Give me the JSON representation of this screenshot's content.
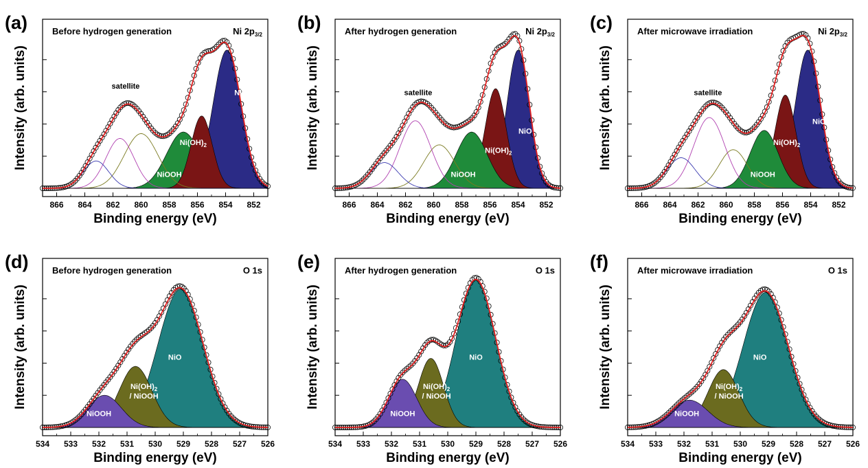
{
  "chart_data": [
    {
      "letter": "(a)",
      "type": "area",
      "title": "Before hydrogen generation",
      "region": "Ni 2p",
      "region_sub": "3/2",
      "xlabel": "Binding energy (eV)",
      "ylabel": "Intensity (arb. units)",
      "xlim": [
        867,
        851
      ],
      "xticks": [
        866,
        864,
        862,
        860,
        858,
        856,
        854,
        852
      ],
      "ylim": [
        0,
        1.0
      ],
      "satellite_label": "satellite",
      "satellite_at": [
        861.1,
        0.62
      ],
      "peaks": [
        {
          "name": "NiO",
          "center": 853.9,
          "height": 0.86,
          "sigma": 1.0,
          "fill": true,
          "color": "#2b2b86",
          "label_at": [
            852.9,
            0.58
          ],
          "label_color": "#ffffff"
        },
        {
          "name": "Ni(OH)",
          "name_sub": "2",
          "center": 855.7,
          "height": 0.45,
          "sigma": 0.75,
          "fill": true,
          "color": "#7a1515",
          "label_at": [
            856.3,
            0.27
          ],
          "label_color": "#ffffff"
        },
        {
          "name": "NiOOH",
          "center": 857.0,
          "height": 0.35,
          "sigma": 1.2,
          "fill": true,
          "color": "#1f8b3a",
          "label_at": [
            858.0,
            0.07
          ],
          "label_color": "#ffffff"
        },
        {
          "name": "",
          "center": 860.0,
          "height": 0.34,
          "sigma": 1.2,
          "fill": false,
          "color": "#7a7a20"
        },
        {
          "name": "",
          "center": 861.5,
          "height": 0.31,
          "sigma": 1.0,
          "fill": false,
          "color": "#b040b0"
        },
        {
          "name": "",
          "center": 863.2,
          "height": 0.17,
          "sigma": 0.9,
          "fill": false,
          "color": "#3a3ab0"
        }
      ]
    },
    {
      "letter": "(b)",
      "type": "area",
      "title": "After hydrogen generation",
      "region": "Ni 2p",
      "region_sub": "3/2",
      "xlabel": "Binding energy (eV)",
      "ylabel": "Intensity (arb. units)",
      "xlim": [
        867,
        851
      ],
      "xticks": [
        866,
        864,
        862,
        860,
        858,
        856,
        854,
        852
      ],
      "ylim": [
        0,
        1.0
      ],
      "satellite_label": "satellite",
      "satellite_at": [
        861.1,
        0.58
      ],
      "peaks": [
        {
          "name": "NiO",
          "center": 854.0,
          "height": 0.86,
          "sigma": 0.8,
          "fill": true,
          "color": "#2b2b86",
          "label_at": [
            853.5,
            0.34
          ],
          "label_color": "#ffffff"
        },
        {
          "name": "Ni(OH)",
          "name_sub": "2",
          "center": 855.6,
          "height": 0.62,
          "sigma": 0.75,
          "fill": true,
          "color": "#7a1515",
          "label_at": [
            855.4,
            0.22
          ],
          "label_color": "#ffffff"
        },
        {
          "name": "NiOOH",
          "center": 857.3,
          "height": 0.35,
          "sigma": 1.1,
          "fill": true,
          "color": "#1f8b3a",
          "label_at": [
            857.9,
            0.07
          ],
          "label_color": "#ffffff"
        },
        {
          "name": "",
          "center": 859.6,
          "height": 0.27,
          "sigma": 1.1,
          "fill": false,
          "color": "#7a7a20"
        },
        {
          "name": "",
          "center": 861.3,
          "height": 0.42,
          "sigma": 1.1,
          "fill": false,
          "color": "#b040b0"
        },
        {
          "name": "",
          "center": 863.5,
          "height": 0.16,
          "sigma": 1.0,
          "fill": false,
          "color": "#3a3ab0"
        }
      ]
    },
    {
      "letter": "(c)",
      "type": "area",
      "title": "After microwave irradiation",
      "region": "Ni 2p",
      "region_sub": "3/2",
      "xlabel": "Binding energy (eV)",
      "ylabel": "Intensity (arb. units)",
      "xlim": [
        867,
        851
      ],
      "xticks": [
        866,
        864,
        862,
        860,
        858,
        856,
        854,
        852
      ],
      "ylim": [
        0,
        1.0
      ],
      "satellite_label": "satellite",
      "satellite_at": [
        861.3,
        0.58
      ],
      "peaks": [
        {
          "name": "NiO",
          "center": 854.2,
          "height": 0.86,
          "sigma": 0.9,
          "fill": true,
          "color": "#2b2b86",
          "label_at": [
            853.4,
            0.4
          ],
          "label_color": "#ffffff"
        },
        {
          "name": "Ni(OH)",
          "name_sub": "2",
          "center": 855.8,
          "height": 0.58,
          "sigma": 0.75,
          "fill": true,
          "color": "#7a1515",
          "label_at": [
            855.7,
            0.27
          ],
          "label_color": "#ffffff"
        },
        {
          "name": "NiOOH",
          "center": 857.3,
          "height": 0.36,
          "sigma": 1.0,
          "fill": true,
          "color": "#1f8b3a",
          "label_at": [
            857.4,
            0.07
          ],
          "label_color": "#ffffff"
        },
        {
          "name": "",
          "center": 859.5,
          "height": 0.24,
          "sigma": 1.0,
          "fill": false,
          "color": "#7a7a20"
        },
        {
          "name": "",
          "center": 861.2,
          "height": 0.44,
          "sigma": 1.1,
          "fill": false,
          "color": "#b040b0"
        },
        {
          "name": "",
          "center": 863.2,
          "height": 0.19,
          "sigma": 1.0,
          "fill": false,
          "color": "#3a3ab0"
        }
      ]
    },
    {
      "letter": "(d)",
      "type": "area",
      "title": "Before hydrogen generation",
      "region": "O 1s",
      "region_sub": "",
      "xlabel": "Binding energy (eV)",
      "ylabel": "Intensity (arb. units)",
      "xlim": [
        534,
        526
      ],
      "xticks": [
        534,
        533,
        532,
        531,
        530,
        529,
        528,
        527,
        526
      ],
      "ylim": [
        0,
        1.0
      ],
      "peaks": [
        {
          "name": "NiO",
          "center": 529.1,
          "height": 0.86,
          "sigma": 0.8,
          "fill": true,
          "color": "#1f7f7f",
          "label_at": [
            529.3,
            0.42
          ],
          "label_color": "#ffffff"
        },
        {
          "name": "Ni(OH)",
          "name_sub": "2",
          "name2": "/ NiOOH",
          "center": 530.7,
          "height": 0.38,
          "sigma": 0.58,
          "fill": true,
          "color": "#6b6b1f",
          "label_at": [
            530.4,
            0.24
          ],
          "label_color": "#ffffff"
        },
        {
          "name": "NiOOH",
          "center": 531.8,
          "height": 0.2,
          "sigma": 0.6,
          "fill": true,
          "color": "#6a4db0",
          "label_at": [
            532.0,
            0.07
          ],
          "label_color": "#ffffff"
        }
      ]
    },
    {
      "letter": "(e)",
      "type": "area",
      "title": "After hydrogen generation",
      "region": "O 1s",
      "region_sub": "",
      "xlabel": "Binding energy (eV)",
      "ylabel": "Intensity (arb. units)",
      "xlim": [
        534,
        526
      ],
      "xticks": [
        534,
        533,
        532,
        531,
        530,
        529,
        528,
        527,
        526
      ],
      "ylim": [
        0,
        1.0
      ],
      "peaks": [
        {
          "name": "NiO",
          "center": 529.0,
          "height": 0.92,
          "sigma": 0.7,
          "fill": true,
          "color": "#1f7f7f",
          "label_at": [
            529.0,
            0.42
          ],
          "label_color": "#ffffff"
        },
        {
          "name": "Ni(OH)",
          "name_sub": "2",
          "name2": "/ NiOOH",
          "center": 530.6,
          "height": 0.43,
          "sigma": 0.45,
          "fill": true,
          "color": "#6b6b1f",
          "label_at": [
            530.4,
            0.24
          ],
          "label_color": "#ffffff"
        },
        {
          "name": "NiOOH",
          "center": 531.6,
          "height": 0.3,
          "sigma": 0.5,
          "fill": true,
          "color": "#6a4db0",
          "label_at": [
            531.6,
            0.07
          ],
          "label_color": "#ffffff"
        }
      ]
    },
    {
      "letter": "(f)",
      "type": "area",
      "title": "After microwave irradiation",
      "region": "O 1s",
      "region_sub": "",
      "xlabel": "Binding energy (eV)",
      "ylabel": "Intensity (arb. units)",
      "xlim": [
        534,
        526
      ],
      "xticks": [
        534,
        533,
        532,
        531,
        530,
        529,
        528,
        527,
        526
      ],
      "ylim": [
        0,
        1.0
      ],
      "peaks": [
        {
          "name": "NiO",
          "center": 529.1,
          "height": 0.84,
          "sigma": 0.8,
          "fill": true,
          "color": "#1f7f7f",
          "label_at": [
            529.3,
            0.42
          ],
          "label_color": "#ffffff"
        },
        {
          "name": "Ni(OH)",
          "name_sub": "2",
          "name2": "/ NiOOH",
          "center": 530.6,
          "height": 0.36,
          "sigma": 0.55,
          "fill": true,
          "color": "#6b6b1f",
          "label_at": [
            530.4,
            0.24
          ],
          "label_color": "#ffffff"
        },
        {
          "name": "NiOOH",
          "center": 531.8,
          "height": 0.17,
          "sigma": 0.65,
          "fill": true,
          "color": "#6a4db0",
          "label_at": [
            531.9,
            0.07
          ],
          "label_color": "#ffffff"
        }
      ]
    }
  ],
  "colors": {
    "fit_line": "#e02020",
    "markers": "#000000",
    "background_line": "#000000"
  }
}
